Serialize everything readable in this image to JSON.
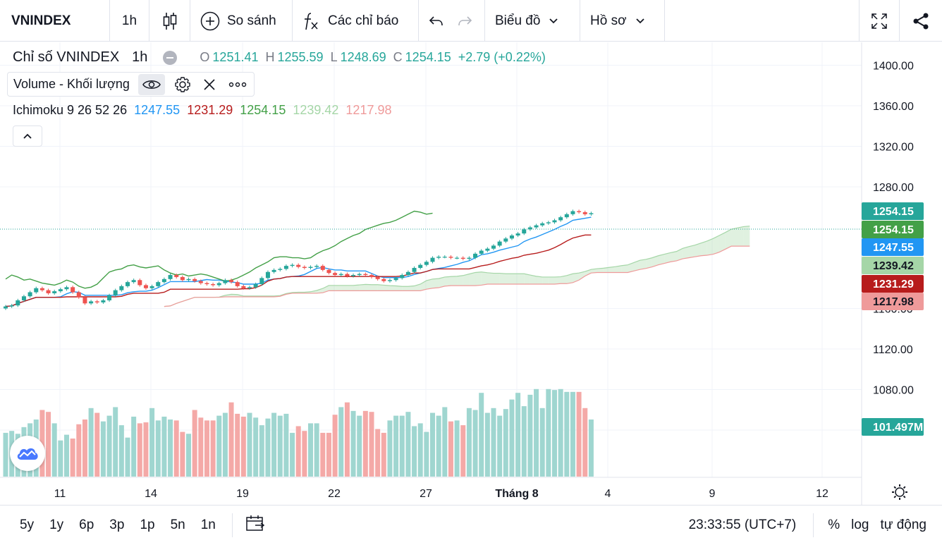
{
  "toolbar": {
    "symbol": "VNINDEX",
    "interval": "1h",
    "compare_label": "So sánh",
    "indicators_label": "Các chỉ báo",
    "chart_label": "Biểu đồ",
    "profile_label": "Hồ sơ"
  },
  "legend": {
    "title": "Chỉ số VNINDEX",
    "interval": "1h",
    "open_label": "O",
    "open": "1251.41",
    "high_label": "H",
    "high": "1255.59",
    "low_label": "L",
    "low": "1248.69",
    "close_label": "C",
    "close": "1254.15",
    "change": "+2.79 (+0.22%)"
  },
  "volume_legend": {
    "label": "Volume - Khối lượng"
  },
  "ichimoku": {
    "label": "Ichimoku 9 26 52 26",
    "conversion": "1247.55",
    "base": "1231.29",
    "lagging": "1254.15",
    "lead_a": "1239.42",
    "lead_b": "1217.98"
  },
  "colors": {
    "up": "#26a69a",
    "down": "#ef5350",
    "conversion": "#2196f3",
    "base": "#b71c1c",
    "lagging": "#43a047",
    "lead_a": "#a5d6a7",
    "lead_b": "#ef9a9a",
    "vol_up": "#9fd6d0",
    "vol_down": "#f4a9a7"
  },
  "price_axis": [
    "1400.00",
    "1360.00",
    "1320.00",
    "1280.00",
    "1160.00",
    "1120.00",
    "1080.00",
    "1040.00"
  ],
  "price_tags": {
    "last": "1254.15",
    "lagging": "1254.15",
    "conversion": "1247.55",
    "lead_a": "1239.42",
    "base": "1231.29",
    "lead_b": "1217.98",
    "volume": "101.497M"
  },
  "time_axis": [
    "11",
    "14",
    "19",
    "22",
    "27",
    "Tháng 8",
    "4",
    "9",
    "12"
  ],
  "bottom": {
    "ranges": [
      "5y",
      "1y",
      "6p",
      "3p",
      "1p",
      "5n",
      "1n"
    ],
    "time": "23:33:55 (UTC+7)",
    "percent": "%",
    "log": "log",
    "auto": "tự động"
  },
  "chart_data": {
    "type": "candlestick",
    "series": [
      {
        "name": "VNINDEX",
        "close": [
          1162,
          1163,
          1168,
          1172,
          1176,
          1180,
          1178,
          1175,
          1177,
          1179,
          1181,
          1176,
          1171,
          1165,
          1167,
          1166,
          1168,
          1173,
          1178,
          1182,
          1186,
          1188,
          1183,
          1180,
          1182,
          1186,
          1189,
          1193,
          1191,
          1188,
          1189,
          1187,
          1185,
          1184,
          1183,
          1185,
          1188,
          1186,
          1182,
          1180,
          1181,
          1184,
          1190,
          1196,
          1198,
          1199,
          1202,
          1203,
          1201,
          1200,
          1201,
          1202,
          1198,
          1195,
          1193,
          1194,
          1192,
          1193,
          1194,
          1193,
          1191,
          1189,
          1187,
          1188,
          1190,
          1193,
          1196,
          1200,
          1203,
          1206,
          1210,
          1211,
          1211,
          1210,
          1210,
          1209,
          1210,
          1214,
          1217,
          1219,
          1222,
          1226,
          1229,
          1232,
          1234,
          1238,
          1240,
          1242,
          1244,
          1245,
          1247,
          1250,
          1253,
          1256,
          1255,
          1253,
          1254
        ]
      },
      {
        "name": "Volume",
        "values_m": [
          46,
          48,
          45,
          52,
          56,
          60,
          70,
          68,
          56,
          38,
          44,
          40,
          55,
          60,
          72,
          67,
          58,
          64,
          73,
          54,
          41,
          63,
          56,
          57,
          72,
          59,
          63,
          60,
          59,
          47,
          45,
          70,
          62,
          59,
          59,
          64,
          67,
          78,
          66,
          63,
          67,
          62,
          54,
          61,
          67,
          64,
          66,
          46,
          53,
          48,
          56,
          56,
          46,
          46,
          65,
          73,
          78,
          69,
          64,
          69,
          68,
          50,
          46,
          59,
          64,
          64,
          68,
          53,
          56,
          47,
          67,
          64,
          73,
          58,
          59,
          54,
          72,
          70,
          88,
          67,
          72,
          64,
          71,
          81,
          88,
          74,
          86,
          92,
          72,
          92,
          91,
          92,
          89,
          89,
          89,
          72,
          60
        ]
      }
    ],
    "y_range": [
      1020,
      1420
    ],
    "x_labels": [
      "11",
      "14",
      "19",
      "22",
      "27",
      "Tháng 8",
      "4",
      "9",
      "12"
    ]
  }
}
